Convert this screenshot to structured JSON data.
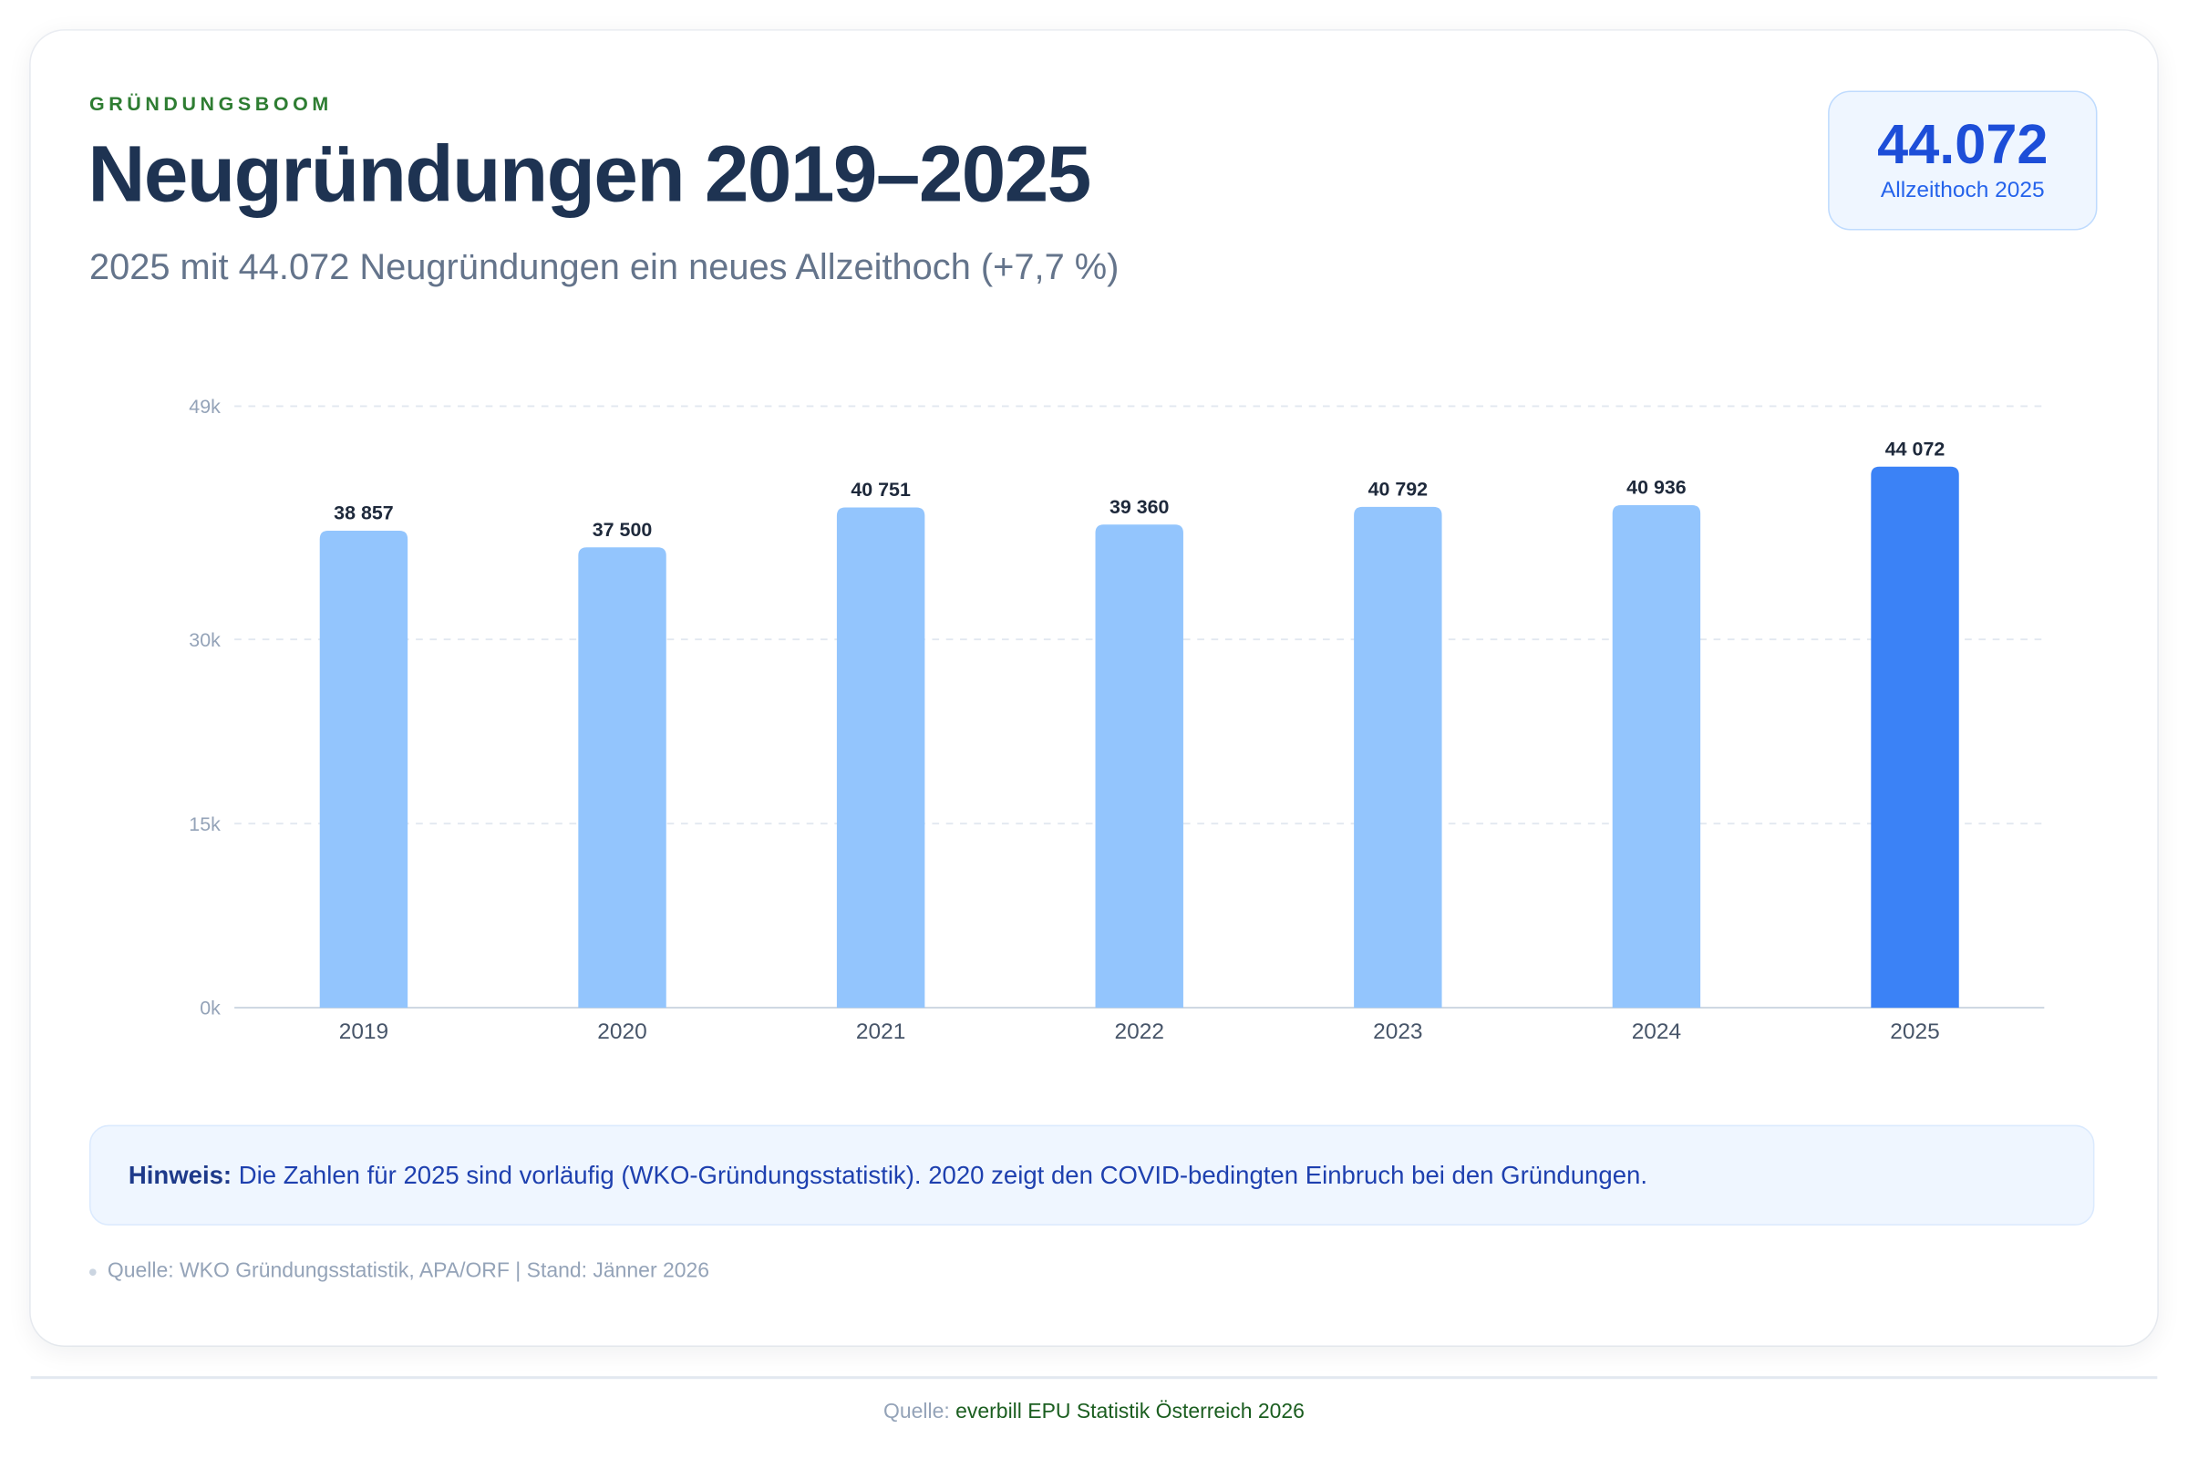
{
  "header": {
    "kicker": "GRÜNDUNGSBOOM",
    "title": "Neugründungen 2019–2025",
    "subtitle": "2025 mit 44.072 Neugründungen ein neues Allzeithoch (+7,7 %)"
  },
  "badge": {
    "value": "44.072",
    "label": "Allzeithoch 2025"
  },
  "chart_data": {
    "type": "bar",
    "title": "Neugründungen 2019–2025",
    "categories": [
      "2019",
      "2020",
      "2021",
      "2022",
      "2023",
      "2024",
      "2025"
    ],
    "values": [
      38857,
      37500,
      40751,
      39360,
      40792,
      40936,
      44072
    ],
    "value_labels": [
      "38 857",
      "37 500",
      "40 751",
      "39 360",
      "40 792",
      "40 936",
      "44 072"
    ],
    "highlight_index": 6,
    "yticks": [
      0,
      15000,
      30000,
      49000
    ],
    "ytick_labels": [
      "0k",
      "15k",
      "30k",
      "49k"
    ],
    "ylim": [
      0,
      49000
    ],
    "xlabel": "",
    "ylabel": "",
    "grid": true,
    "colors": {
      "bar": "#93c5fd",
      "highlight": "#3b82f6",
      "grid": "#e2e8f0"
    }
  },
  "note": {
    "label": "Hinweis:",
    "text": " Die Zahlen für 2025 sind vorläufig (WKO-Gründungsstatistik). 2020 zeigt den COVID-bedingten Einbruch bei den Gründungen."
  },
  "source": "Quelle: WKO Gründungsstatistik, APA/ORF | Stand: Jänner 2026",
  "footer": {
    "prefix": "Quelle: ",
    "brand": "everbill EPU Statistik Österreich 2026"
  }
}
